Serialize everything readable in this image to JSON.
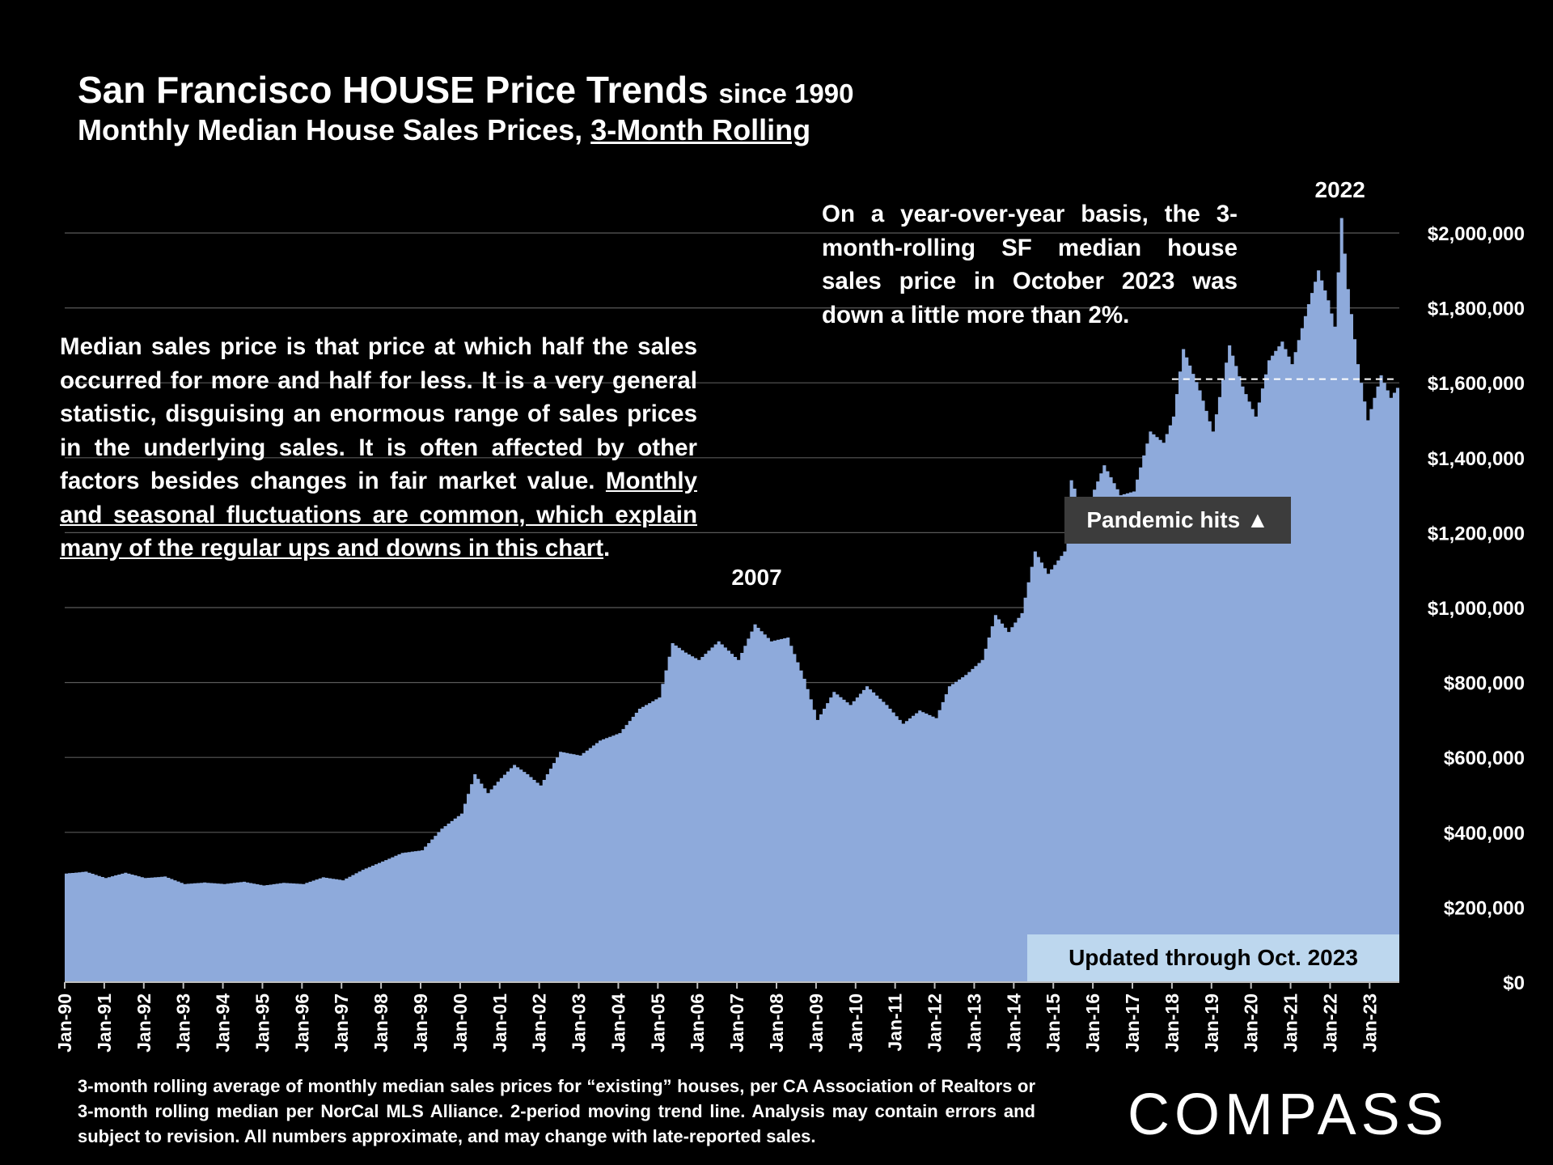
{
  "header": {
    "title": "San Francisco HOUSE Price Trends",
    "title_suffix": "since 1990",
    "subtitle_prefix": "Monthly Median House Sales Prices,",
    "subtitle_underlined": "3-Month Rolling"
  },
  "notes": {
    "left_plain": "Median sales price is that price at which half the sales occurred for more and half for less. It is a very general statistic, disguising an enormous range of sales prices in the underlying sales. It is often affected by other factors besides changes in fair market value.",
    "left_underlined": "Monthly and seasonal fluctuations are common, which explain many of the regular ups and downs in this chart",
    "left_end": ".",
    "right": "On a year-over-year basis, the 3-month-rolling SF median house sales price in October 2023 was down a little more than 2%."
  },
  "footnote": "3-month rolling average of monthly median sales prices for “existing” houses, per CA Association of Realtors or 3-month rolling median per NorCal MLS Alliance. 2-period moving trend line. Analysis may contain errors and subject to revision. All numbers approximate, and may change with late-reported sales.",
  "brand": {
    "logo_text": "COMPASS"
  },
  "colors": {
    "area": "#8eaadb",
    "background": "#000000",
    "grid": "#595959",
    "pandemic_badge": "#3c3c3c",
    "updated_badge": "#bdd7ee"
  },
  "chart_data": {
    "type": "area",
    "title": "San Francisco HOUSE Price Trends since 1990",
    "subtitle": "Monthly Median House Sales Prices, 3-Month Rolling",
    "xlabel": "",
    "ylabel": "",
    "y_axis_position": "right",
    "ylim": [
      0,
      2000000
    ],
    "y_ticks": [
      0,
      200000,
      400000,
      600000,
      800000,
      1000000,
      1200000,
      1400000,
      1600000,
      1800000,
      2000000
    ],
    "y_tick_labels": [
      "$0",
      "$200,000",
      "$400,000",
      "$600,000",
      "$800,000",
      "$1,000,000",
      "$1,200,000",
      "$1,400,000",
      "$1,600,000",
      "$1,800,000",
      "$2,000,000"
    ],
    "x_tick_labels": [
      "Jan-90",
      "Jan-91",
      "Jan-92",
      "Jan-93",
      "Jan-94",
      "Jan-95",
      "Jan-96",
      "Jan-97",
      "Jan-98",
      "Jan-99",
      "Jan-00",
      "Jan-01",
      "Jan-02",
      "Jan-03",
      "Jan-04",
      "Jan-05",
      "Jan-06",
      "Jan-07",
      "Jan-08",
      "Jan-09",
      "Jan-10",
      "Jan-11",
      "Jan-12",
      "Jan-13",
      "Jan-14",
      "Jan-15",
      "Jan-16",
      "Jan-17",
      "Jan-18",
      "Jan-19",
      "Jan-20",
      "Jan-21",
      "Jan-22",
      "Jan-23"
    ],
    "grid": true,
    "reference_line": {
      "value": 1610000,
      "style": "dashed",
      "from": "2018-01"
    },
    "annotations": {
      "peak_2007": "2007",
      "peak_2022": "2022",
      "pandemic": "Pandemic hits ▲",
      "updated": "Updated through Oct. 2023"
    },
    "series": [
      {
        "points": [
          [
            "1990-01",
            290000
          ],
          [
            "1990-07",
            295000
          ],
          [
            "1991-01",
            278000
          ],
          [
            "1991-07",
            292000
          ],
          [
            "1992-01",
            278000
          ],
          [
            "1992-07",
            282000
          ],
          [
            "1993-01",
            262000
          ],
          [
            "1993-07",
            266000
          ],
          [
            "1994-01",
            262000
          ],
          [
            "1994-07",
            268000
          ],
          [
            "1995-01",
            258000
          ],
          [
            "1995-07",
            265000
          ],
          [
            "1996-01",
            262000
          ],
          [
            "1996-07",
            280000
          ],
          [
            "1997-01",
            272000
          ],
          [
            "1997-07",
            300000
          ],
          [
            "1998-01",
            322000
          ],
          [
            "1998-07",
            345000
          ],
          [
            "1999-01",
            352000
          ],
          [
            "1999-07",
            410000
          ],
          [
            "2000-01",
            450000
          ],
          [
            "2000-05",
            555000
          ],
          [
            "2000-09",
            505000
          ],
          [
            "2001-01",
            545000
          ],
          [
            "2001-05",
            580000
          ],
          [
            "2001-09",
            555000
          ],
          [
            "2002-01",
            525000
          ],
          [
            "2002-07",
            615000
          ],
          [
            "2003-01",
            605000
          ],
          [
            "2003-07",
            645000
          ],
          [
            "2004-01",
            665000
          ],
          [
            "2004-07",
            730000
          ],
          [
            "2005-01",
            760000
          ],
          [
            "2005-05",
            905000
          ],
          [
            "2005-09",
            880000
          ],
          [
            "2006-01",
            860000
          ],
          [
            "2006-07",
            910000
          ],
          [
            "2007-01",
            860000
          ],
          [
            "2007-06",
            955000
          ],
          [
            "2007-11",
            910000
          ],
          [
            "2008-04",
            920000
          ],
          [
            "2008-09",
            810000
          ],
          [
            "2009-01",
            700000
          ],
          [
            "2009-06",
            775000
          ],
          [
            "2009-11",
            740000
          ],
          [
            "2010-04",
            790000
          ],
          [
            "2010-10",
            740000
          ],
          [
            "2011-03",
            690000
          ],
          [
            "2011-08",
            725000
          ],
          [
            "2012-01",
            705000
          ],
          [
            "2012-05",
            790000
          ],
          [
            "2012-10",
            820000
          ],
          [
            "2013-03",
            860000
          ],
          [
            "2013-07",
            980000
          ],
          [
            "2013-11",
            935000
          ],
          [
            "2014-03",
            985000
          ],
          [
            "2014-07",
            1150000
          ],
          [
            "2014-11",
            1090000
          ],
          [
            "2015-04",
            1150000
          ],
          [
            "2015-06",
            1340000
          ],
          [
            "2015-10",
            1250000
          ],
          [
            "2016-04",
            1380000
          ],
          [
            "2016-09",
            1300000
          ],
          [
            "2017-01",
            1310000
          ],
          [
            "2017-06",
            1470000
          ],
          [
            "2017-10",
            1440000
          ],
          [
            "2018-01",
            1510000
          ],
          [
            "2018-04",
            1690000
          ],
          [
            "2018-09",
            1580000
          ],
          [
            "2019-01",
            1470000
          ],
          [
            "2019-06",
            1700000
          ],
          [
            "2019-10",
            1590000
          ],
          [
            "2020-02",
            1510000
          ],
          [
            "2020-06",
            1660000
          ],
          [
            "2020-10",
            1710000
          ],
          [
            "2021-01",
            1650000
          ],
          [
            "2021-06",
            1810000
          ],
          [
            "2021-09",
            1900000
          ],
          [
            "2021-12",
            1820000
          ],
          [
            "2022-02",
            1750000
          ],
          [
            "2022-04",
            2040000
          ],
          [
            "2022-06",
            1850000
          ],
          [
            "2022-09",
            1650000
          ],
          [
            "2022-12",
            1500000
          ],
          [
            "2023-04",
            1620000
          ],
          [
            "2023-07",
            1560000
          ],
          [
            "2023-10",
            1600000
          ]
        ]
      }
    ]
  }
}
